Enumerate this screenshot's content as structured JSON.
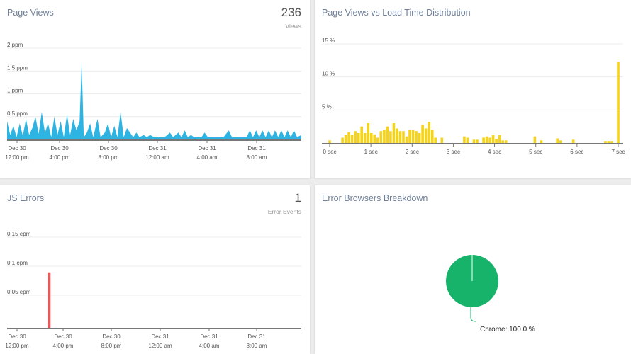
{
  "panels": {
    "page_views": {
      "title": "Page Views",
      "stat_value": "236",
      "stat_label": "Views"
    },
    "load_time": {
      "title": "Page Views vs Load Time Distribution"
    },
    "js_errors": {
      "title": "JS Errors",
      "stat_value": "1",
      "stat_label": "Error Events"
    },
    "browsers": {
      "title": "Error Browsers Breakdown"
    }
  },
  "colors": {
    "page_views": "#2eb4e3",
    "load_time": "#f5d31a",
    "js_errors": "#e35b5b",
    "browsers": "#17b36b"
  },
  "chart_data": [
    {
      "id": "page_views",
      "type": "area",
      "y_ticks": [
        "2 ppm",
        "1.5 ppm",
        "1 ppm",
        "0.5 ppm"
      ],
      "ylim": [
        0,
        2
      ],
      "x_ticks": [
        {
          "top": "Dec 30",
          "bottom": "12:00 pm"
        },
        {
          "top": "Dec 30",
          "bottom": "4:00 pm"
        },
        {
          "top": "Dec 30",
          "bottom": "8:00 pm"
        },
        {
          "top": "Dec 31",
          "bottom": "12:00 am"
        },
        {
          "top": "Dec 31",
          "bottom": "4:00 am"
        },
        {
          "top": "Dec 31",
          "bottom": "8:00 am"
        }
      ],
      "xlim": [
        0,
        28
      ],
      "points": [
        [
          0,
          0.4
        ],
        [
          0.3,
          0.1
        ],
        [
          0.6,
          0.3
        ],
        [
          0.9,
          0.05
        ],
        [
          1.2,
          0.35
        ],
        [
          1.5,
          0.08
        ],
        [
          1.8,
          0.45
        ],
        [
          2.1,
          0.1
        ],
        [
          2.4,
          0.25
        ],
        [
          2.7,
          0.5
        ],
        [
          3.0,
          0.12
        ],
        [
          3.3,
          0.6
        ],
        [
          3.6,
          0.15
        ],
        [
          3.9,
          0.35
        ],
        [
          4.2,
          0.05
        ],
        [
          4.5,
          0.5
        ],
        [
          4.8,
          0.1
        ],
        [
          5.1,
          0.4
        ],
        [
          5.4,
          0.05
        ],
        [
          5.7,
          0.55
        ],
        [
          6.0,
          0.1
        ],
        [
          6.3,
          0.45
        ],
        [
          6.6,
          0.2
        ],
        [
          6.9,
          0.4
        ],
        [
          7.1,
          1.7
        ],
        [
          7.3,
          0.05
        ],
        [
          7.6,
          0.15
        ],
        [
          7.9,
          0.35
        ],
        [
          8.2,
          0.05
        ],
        [
          8.6,
          0.45
        ],
        [
          8.9,
          0.05
        ],
        [
          9.3,
          0.15
        ],
        [
          9.6,
          0.35
        ],
        [
          9.9,
          0.05
        ],
        [
          10.2,
          0.3
        ],
        [
          10.5,
          0.05
        ],
        [
          10.8,
          0.6
        ],
        [
          11.1,
          0.05
        ],
        [
          11.4,
          0.25
        ],
        [
          11.7,
          0.15
        ],
        [
          12.0,
          0.05
        ],
        [
          12.3,
          0.15
        ],
        [
          12.6,
          0.05
        ],
        [
          13.0,
          0.1
        ],
        [
          13.3,
          0.05
        ],
        [
          13.6,
          0.1
        ],
        [
          14.0,
          0.05
        ],
        [
          15.0,
          0.05
        ],
        [
          15.5,
          0.15
        ],
        [
          15.8,
          0.05
        ],
        [
          16.3,
          0.15
        ],
        [
          16.6,
          0.05
        ],
        [
          16.9,
          0.2
        ],
        [
          17.2,
          0.05
        ],
        [
          17.5,
          0.1
        ],
        [
          17.8,
          0.05
        ],
        [
          18.5,
          0.05
        ],
        [
          18.8,
          0.15
        ],
        [
          19.1,
          0.05
        ],
        [
          20.0,
          0.05
        ],
        [
          20.6,
          0.05
        ],
        [
          21.1,
          0.2
        ],
        [
          21.4,
          0.05
        ],
        [
          22.8,
          0.05
        ],
        [
          23.1,
          0.2
        ],
        [
          23.4,
          0.05
        ],
        [
          23.7,
          0.2
        ],
        [
          24.0,
          0.05
        ],
        [
          24.3,
          0.2
        ],
        [
          24.6,
          0.05
        ],
        [
          24.9,
          0.2
        ],
        [
          25.2,
          0.05
        ],
        [
          25.5,
          0.2
        ],
        [
          25.8,
          0.05
        ],
        [
          26.1,
          0.2
        ],
        [
          26.4,
          0.05
        ],
        [
          26.7,
          0.2
        ],
        [
          27.0,
          0.05
        ],
        [
          27.3,
          0.2
        ],
        [
          27.6,
          0.05
        ],
        [
          28,
          0.1
        ]
      ]
    },
    {
      "id": "load_time",
      "type": "bar",
      "y_ticks": [
        "15 %",
        "10 %",
        "5 %"
      ],
      "ylim": [
        0,
        15
      ],
      "x_ticks": [
        "0 sec",
        "1 sec",
        "2 sec",
        "3 sec",
        "4 sec",
        "5 sec",
        "6 sec",
        "7 sec"
      ],
      "xlim": [
        0,
        7
      ],
      "values": [
        0.4,
        0,
        0,
        0,
        0.8,
        1.2,
        1.6,
        1.2,
        1.8,
        1.5,
        2.5,
        1.5,
        3.0,
        1.5,
        1.3,
        0.8,
        1.8,
        2.0,
        2.5,
        1.8,
        3.0,
        2.2,
        1.8,
        1.8,
        1.0,
        2.0,
        2.0,
        1.8,
        1.5,
        2.8,
        2.2,
        3.2,
        2.0,
        0.8,
        0,
        0.8,
        0,
        0,
        0,
        0,
        0,
        0,
        1.0,
        0.8,
        0,
        0.5,
        0.5,
        0,
        0.8,
        1.0,
        0.8,
        1.2,
        0.6,
        1.2,
        0.4,
        0.4,
        0,
        0,
        0,
        0,
        0,
        0,
        0,
        0,
        1.0,
        0,
        0.4,
        0,
        0,
        0,
        0,
        0.7,
        0.4,
        0,
        0,
        0,
        0.5,
        0,
        0,
        0,
        0,
        0,
        0,
        0,
        0,
        0,
        0.3,
        0.3,
        0.3,
        0,
        12.3
      ]
    },
    {
      "id": "js_errors",
      "type": "bar",
      "y_ticks": [
        "0.15 epm",
        "0.1 epm",
        "0.05 epm"
      ],
      "ylim": [
        0,
        0.175
      ],
      "x_ticks": [
        {
          "top": "Dec 30",
          "bottom": "12:00 pm"
        },
        {
          "top": "Dec 30",
          "bottom": "4:00 pm"
        },
        {
          "top": "Dec 30",
          "bottom": "8:00 pm"
        },
        {
          "top": "Dec 31",
          "bottom": "12:00 am"
        },
        {
          "top": "Dec 31",
          "bottom": "4:00 am"
        },
        {
          "top": "Dec 31",
          "bottom": "8:00 am"
        }
      ],
      "xlim": [
        0,
        28
      ],
      "bars": [
        {
          "x": 4.0,
          "value": 0.1
        }
      ]
    },
    {
      "id": "browsers",
      "type": "pie",
      "slices": [
        {
          "label": "Chrome",
          "value": 100.0
        }
      ],
      "annotation": "Chrome: 100.0 %"
    }
  ]
}
